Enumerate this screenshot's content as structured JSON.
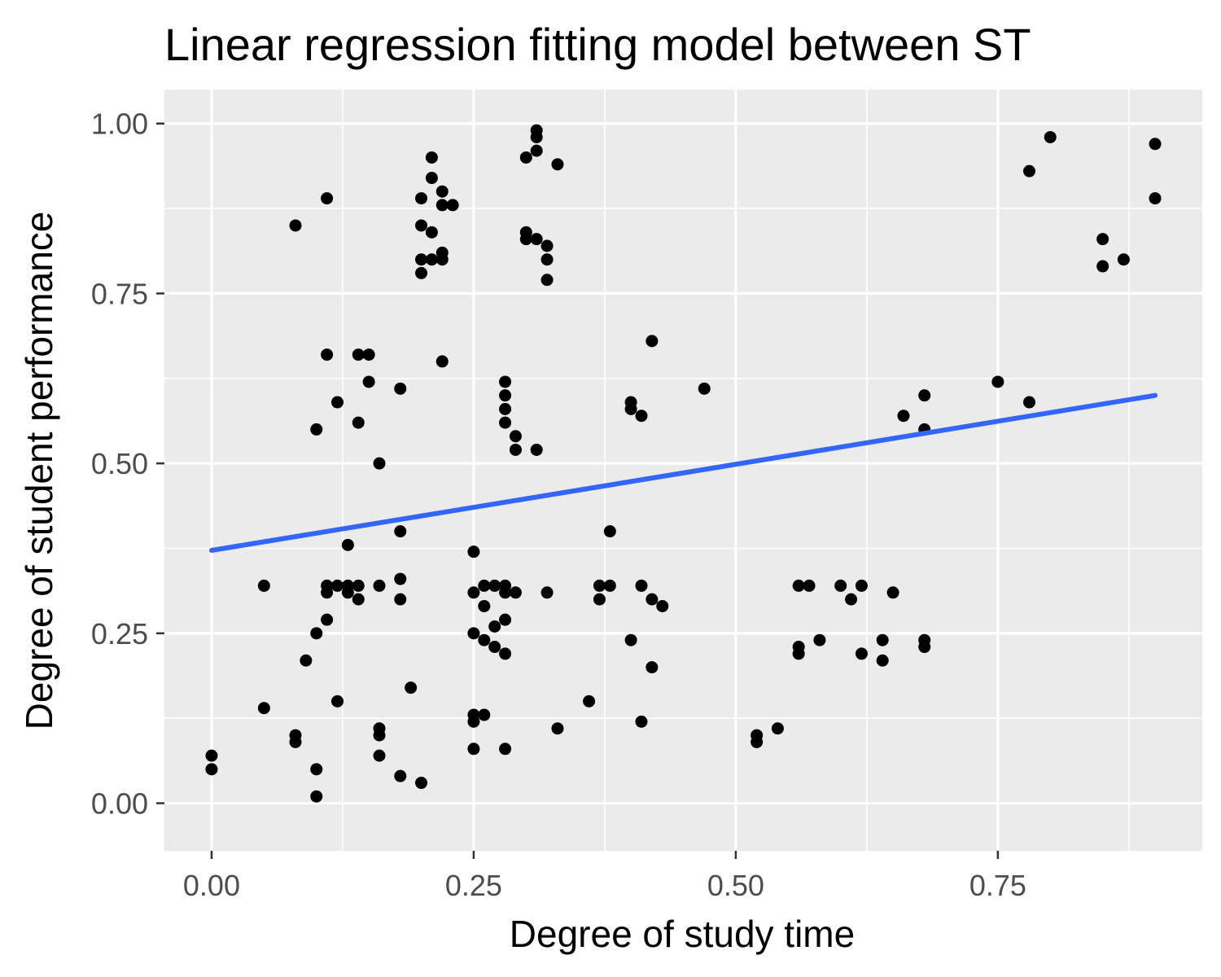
{
  "chart_data": {
    "type": "scatter",
    "title": "Linear regression fitting model between ST",
    "xlabel": "Degree of study time",
    "ylabel": "Degree of student performance",
    "xlim": [
      -0.045,
      0.945
    ],
    "ylim": [
      -0.07,
      1.05
    ],
    "x_ticks": [
      0.0,
      0.25,
      0.5,
      0.75
    ],
    "x_tick_labels": [
      "0.00",
      "0.25",
      "0.50",
      "0.75"
    ],
    "y_ticks": [
      0.0,
      0.25,
      0.5,
      0.75,
      1.0
    ],
    "y_tick_labels": [
      "0.00",
      "0.25",
      "0.50",
      "0.75",
      "1.00"
    ],
    "grid": true,
    "legend": "none",
    "colors": {
      "panel": "#ebebeb",
      "grid": "#ffffff",
      "points": "#000000",
      "fit_line": "#3366ff"
    },
    "points": [
      [
        0.0,
        0.07
      ],
      [
        0.0,
        0.05
      ],
      [
        0.05,
        0.32
      ],
      [
        0.05,
        0.14
      ],
      [
        0.08,
        0.85
      ],
      [
        0.08,
        0.1
      ],
      [
        0.08,
        0.09
      ],
      [
        0.09,
        0.21
      ],
      [
        0.1,
        0.55
      ],
      [
        0.1,
        0.25
      ],
      [
        0.1,
        0.05
      ],
      [
        0.1,
        0.01
      ],
      [
        0.11,
        0.89
      ],
      [
        0.11,
        0.66
      ],
      [
        0.11,
        0.32
      ],
      [
        0.11,
        0.31
      ],
      [
        0.11,
        0.27
      ],
      [
        0.12,
        0.59
      ],
      [
        0.12,
        0.32
      ],
      [
        0.12,
        0.15
      ],
      [
        0.13,
        0.38
      ],
      [
        0.13,
        0.32
      ],
      [
        0.13,
        0.31
      ],
      [
        0.14,
        0.66
      ],
      [
        0.14,
        0.56
      ],
      [
        0.14,
        0.32
      ],
      [
        0.14,
        0.3
      ],
      [
        0.15,
        0.66
      ],
      [
        0.15,
        0.62
      ],
      [
        0.16,
        0.5
      ],
      [
        0.16,
        0.32
      ],
      [
        0.16,
        0.11
      ],
      [
        0.16,
        0.1
      ],
      [
        0.16,
        0.07
      ],
      [
        0.18,
        0.61
      ],
      [
        0.18,
        0.4
      ],
      [
        0.18,
        0.33
      ],
      [
        0.18,
        0.3
      ],
      [
        0.18,
        0.04
      ],
      [
        0.19,
        0.17
      ],
      [
        0.2,
        0.89
      ],
      [
        0.2,
        0.85
      ],
      [
        0.2,
        0.8
      ],
      [
        0.2,
        0.78
      ],
      [
        0.2,
        0.03
      ],
      [
        0.21,
        0.95
      ],
      [
        0.21,
        0.92
      ],
      [
        0.21,
        0.84
      ],
      [
        0.21,
        0.8
      ],
      [
        0.22,
        0.9
      ],
      [
        0.22,
        0.88
      ],
      [
        0.22,
        0.81
      ],
      [
        0.22,
        0.8
      ],
      [
        0.22,
        0.65
      ],
      [
        0.23,
        0.88
      ],
      [
        0.25,
        0.37
      ],
      [
        0.25,
        0.31
      ],
      [
        0.25,
        0.25
      ],
      [
        0.25,
        0.13
      ],
      [
        0.25,
        0.12
      ],
      [
        0.25,
        0.08
      ],
      [
        0.26,
        0.32
      ],
      [
        0.26,
        0.29
      ],
      [
        0.26,
        0.24
      ],
      [
        0.26,
        0.13
      ],
      [
        0.27,
        0.32
      ],
      [
        0.27,
        0.26
      ],
      [
        0.27,
        0.23
      ],
      [
        0.28,
        0.62
      ],
      [
        0.28,
        0.6
      ],
      [
        0.28,
        0.58
      ],
      [
        0.28,
        0.56
      ],
      [
        0.28,
        0.32
      ],
      [
        0.28,
        0.31
      ],
      [
        0.28,
        0.27
      ],
      [
        0.28,
        0.22
      ],
      [
        0.28,
        0.08
      ],
      [
        0.29,
        0.54
      ],
      [
        0.29,
        0.52
      ],
      [
        0.29,
        0.31
      ],
      [
        0.3,
        0.95
      ],
      [
        0.3,
        0.84
      ],
      [
        0.3,
        0.83
      ],
      [
        0.31,
        0.99
      ],
      [
        0.31,
        0.98
      ],
      [
        0.31,
        0.96
      ],
      [
        0.31,
        0.83
      ],
      [
        0.31,
        0.52
      ],
      [
        0.32,
        0.82
      ],
      [
        0.32,
        0.8
      ],
      [
        0.32,
        0.77
      ],
      [
        0.32,
        0.31
      ],
      [
        0.33,
        0.94
      ],
      [
        0.33,
        0.11
      ],
      [
        0.36,
        0.15
      ],
      [
        0.37,
        0.32
      ],
      [
        0.37,
        0.3
      ],
      [
        0.38,
        0.4
      ],
      [
        0.38,
        0.32
      ],
      [
        0.4,
        0.59
      ],
      [
        0.4,
        0.58
      ],
      [
        0.4,
        0.24
      ],
      [
        0.41,
        0.57
      ],
      [
        0.41,
        0.32
      ],
      [
        0.41,
        0.12
      ],
      [
        0.42,
        0.68
      ],
      [
        0.42,
        0.3
      ],
      [
        0.42,
        0.2
      ],
      [
        0.43,
        0.29
      ],
      [
        0.47,
        0.61
      ],
      [
        0.52,
        0.1
      ],
      [
        0.52,
        0.09
      ],
      [
        0.54,
        0.11
      ],
      [
        0.56,
        0.32
      ],
      [
        0.56,
        0.23
      ],
      [
        0.56,
        0.22
      ],
      [
        0.57,
        0.32
      ],
      [
        0.58,
        0.24
      ],
      [
        0.6,
        0.32
      ],
      [
        0.61,
        0.3
      ],
      [
        0.62,
        0.32
      ],
      [
        0.62,
        0.22
      ],
      [
        0.64,
        0.24
      ],
      [
        0.64,
        0.21
      ],
      [
        0.65,
        0.31
      ],
      [
        0.66,
        0.57
      ],
      [
        0.68,
        0.6
      ],
      [
        0.68,
        0.55
      ],
      [
        0.68,
        0.24
      ],
      [
        0.68,
        0.23
      ],
      [
        0.75,
        0.62
      ],
      [
        0.78,
        0.93
      ],
      [
        0.78,
        0.59
      ],
      [
        0.8,
        0.98
      ],
      [
        0.85,
        0.83
      ],
      [
        0.85,
        0.79
      ],
      [
        0.87,
        0.8
      ],
      [
        0.9,
        0.97
      ],
      [
        0.9,
        0.89
      ]
    ],
    "fit_line": {
      "x": [
        0.0,
        0.9
      ],
      "y": [
        0.372,
        0.6
      ]
    }
  }
}
